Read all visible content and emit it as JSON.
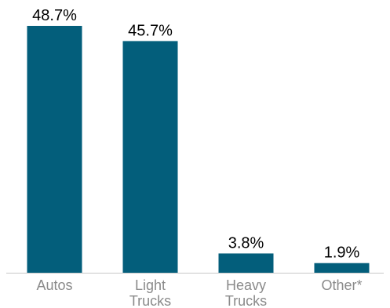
{
  "chart_data": {
    "type": "bar",
    "categories": [
      [
        "Autos"
      ],
      [
        "Light",
        "Trucks"
      ],
      [
        "Heavy",
        "Trucks"
      ],
      [
        "Other*"
      ]
    ],
    "values": [
      48.7,
      45.7,
      3.8,
      1.9
    ],
    "value_labels": [
      "48.7%",
      "45.7%",
      "3.8%",
      "1.9%"
    ],
    "unit": "%",
    "ylim": [
      0,
      50
    ],
    "grid": false,
    "legend": "none",
    "bar_color": "#035e7b",
    "axis_color": "#c8c8c8",
    "label_color": "#8a8a8a"
  }
}
